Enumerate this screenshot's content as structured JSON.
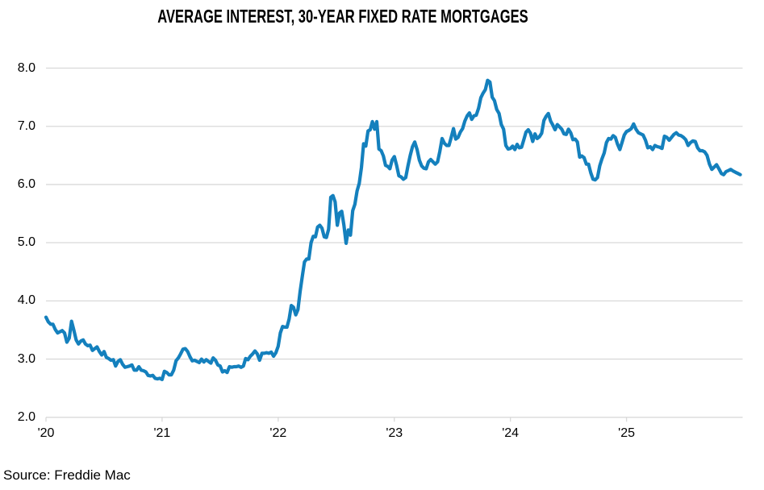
{
  "title": "AVERAGE INTEREST, 30-YEAR FIXED RATE MORTGAGES",
  "source_note": "Source: Freddie Mac",
  "colors": {
    "line": "#1480bd",
    "grid": "#d9d9d9",
    "axis": "#d9d9d9",
    "text": "#000000",
    "background": "#ffffff"
  },
  "chart_data": {
    "type": "line",
    "title": "AVERAGE INTEREST, 30-YEAR FIXED RATE MORTGAGES",
    "xlabel": "",
    "ylabel": "",
    "unit": "percent",
    "ylim": [
      2.0,
      8.0
    ],
    "ytick_labels": [
      "2.0",
      "3.0",
      "4.0",
      "5.0",
      "6.0",
      "7.0",
      "8.0"
    ],
    "x_tick_labels": [
      "'20",
      "'21",
      "'22",
      "'23",
      "'24",
      "'25"
    ],
    "grid": "horizontal-only",
    "legend": "none",
    "series": [
      {
        "name": "30-year fixed rate mortgage average, weekly (%)",
        "color": "#1480bd",
        "data_by_year": {
          "2020": [
            3.72,
            3.64,
            3.6,
            3.6,
            3.51,
            3.45,
            3.47,
            3.49,
            3.45,
            3.29,
            3.36,
            3.65,
            3.5,
            3.33,
            3.26,
            3.31,
            3.33,
            3.26,
            3.23,
            3.24,
            3.15,
            3.18,
            3.21,
            3.13,
            3.07,
            3.13,
            3.03,
            3.01,
            2.98,
            2.99,
            2.88,
            2.96,
            2.99,
            2.91,
            2.86,
            2.87,
            2.88,
            2.9,
            2.81,
            2.81,
            2.87,
            2.81,
            2.8,
            2.78,
            2.72,
            2.71,
            2.72,
            2.67,
            2.66,
            2.67
          ],
          "2021": [
            2.65,
            2.79,
            2.77,
            2.73,
            2.73,
            2.81,
            2.97,
            3.02,
            3.09,
            3.17,
            3.18,
            3.13,
            3.04,
            2.97,
            2.98,
            2.96,
            2.94,
            3.0,
            2.95,
            2.99,
            2.96,
            2.93,
            3.02,
            2.98,
            2.9,
            2.88,
            2.78,
            2.8,
            2.77,
            2.87,
            2.86,
            2.87,
            2.87,
            2.88,
            2.86,
            2.88,
            3.01,
            2.99,
            3.05,
            3.09,
            3.14,
            3.09,
            2.98,
            3.1,
            3.1,
            3.11,
            3.1,
            3.12,
            3.05,
            3.11
          ],
          "2022": [
            3.22,
            3.45,
            3.56,
            3.55,
            3.55,
            3.69,
            3.92,
            3.89,
            3.76,
            3.85,
            4.16,
            4.42,
            4.67,
            4.72,
            4.72,
            5.0,
            5.11,
            5.1,
            5.27,
            5.3,
            5.25,
            5.1,
            5.09,
            5.23,
            5.78,
            5.81,
            5.7,
            5.3,
            5.51,
            5.54,
            5.3,
            4.99,
            5.22,
            5.13,
            5.55,
            5.66,
            5.89,
            6.02,
            6.29,
            6.7,
            6.66,
            6.92,
            6.94,
            7.08,
            6.95,
            7.08,
            6.61,
            6.58,
            6.49,
            6.33,
            6.31,
            6.27,
            6.42
          ],
          "2023": [
            6.48,
            6.33,
            6.15,
            6.13,
            6.09,
            6.12,
            6.32,
            6.5,
            6.65,
            6.73,
            6.6,
            6.42,
            6.32,
            6.28,
            6.27,
            6.39,
            6.43,
            6.39,
            6.35,
            6.39,
            6.57,
            6.79,
            6.71,
            6.67,
            6.67,
            6.81,
            6.96,
            6.78,
            6.81,
            6.9,
            6.96,
            7.09,
            7.18,
            7.23,
            7.12,
            7.18,
            7.19,
            7.31,
            7.49,
            7.57,
            7.63,
            7.79,
            7.76,
            7.5,
            7.44,
            7.29,
            7.22,
            7.03,
            6.95,
            6.67,
            6.61
          ],
          "2024": [
            6.62,
            6.66,
            6.6,
            6.69,
            6.63,
            6.64,
            6.77,
            6.9,
            6.94,
            6.88,
            6.74,
            6.87,
            6.79,
            6.82,
            6.88,
            7.1,
            7.17,
            7.22,
            7.09,
            7.02,
            6.94,
            7.03,
            6.99,
            6.95,
            6.87,
            6.86,
            6.95,
            6.89,
            6.77,
            6.78,
            6.73,
            6.47,
            6.49,
            6.46,
            6.35,
            6.35,
            6.2,
            6.09,
            6.08,
            6.12,
            6.32,
            6.44,
            6.54,
            6.72,
            6.79,
            6.78,
            6.84,
            6.81,
            6.69,
            6.6,
            6.72,
            6.85
          ],
          "2025": [
            6.91,
            6.93,
            6.96,
            7.04,
            6.95,
            6.89,
            6.87,
            6.85,
            6.76,
            6.63,
            6.65,
            6.6,
            6.67,
            6.65,
            6.64,
            6.62,
            6.83,
            6.81,
            6.76,
            6.81,
            6.86,
            6.89,
            6.85,
            6.84,
            6.81,
            6.77,
            6.67,
            6.72,
            6.75,
            6.74,
            6.63,
            6.58,
            6.58,
            6.56,
            6.5,
            6.35,
            6.26,
            6.3,
            6.34,
            6.27,
            6.19,
            6.17,
            6.22,
            6.24,
            6.26,
            6.23,
            6.21,
            6.19,
            6.17
          ]
        }
      }
    ]
  }
}
